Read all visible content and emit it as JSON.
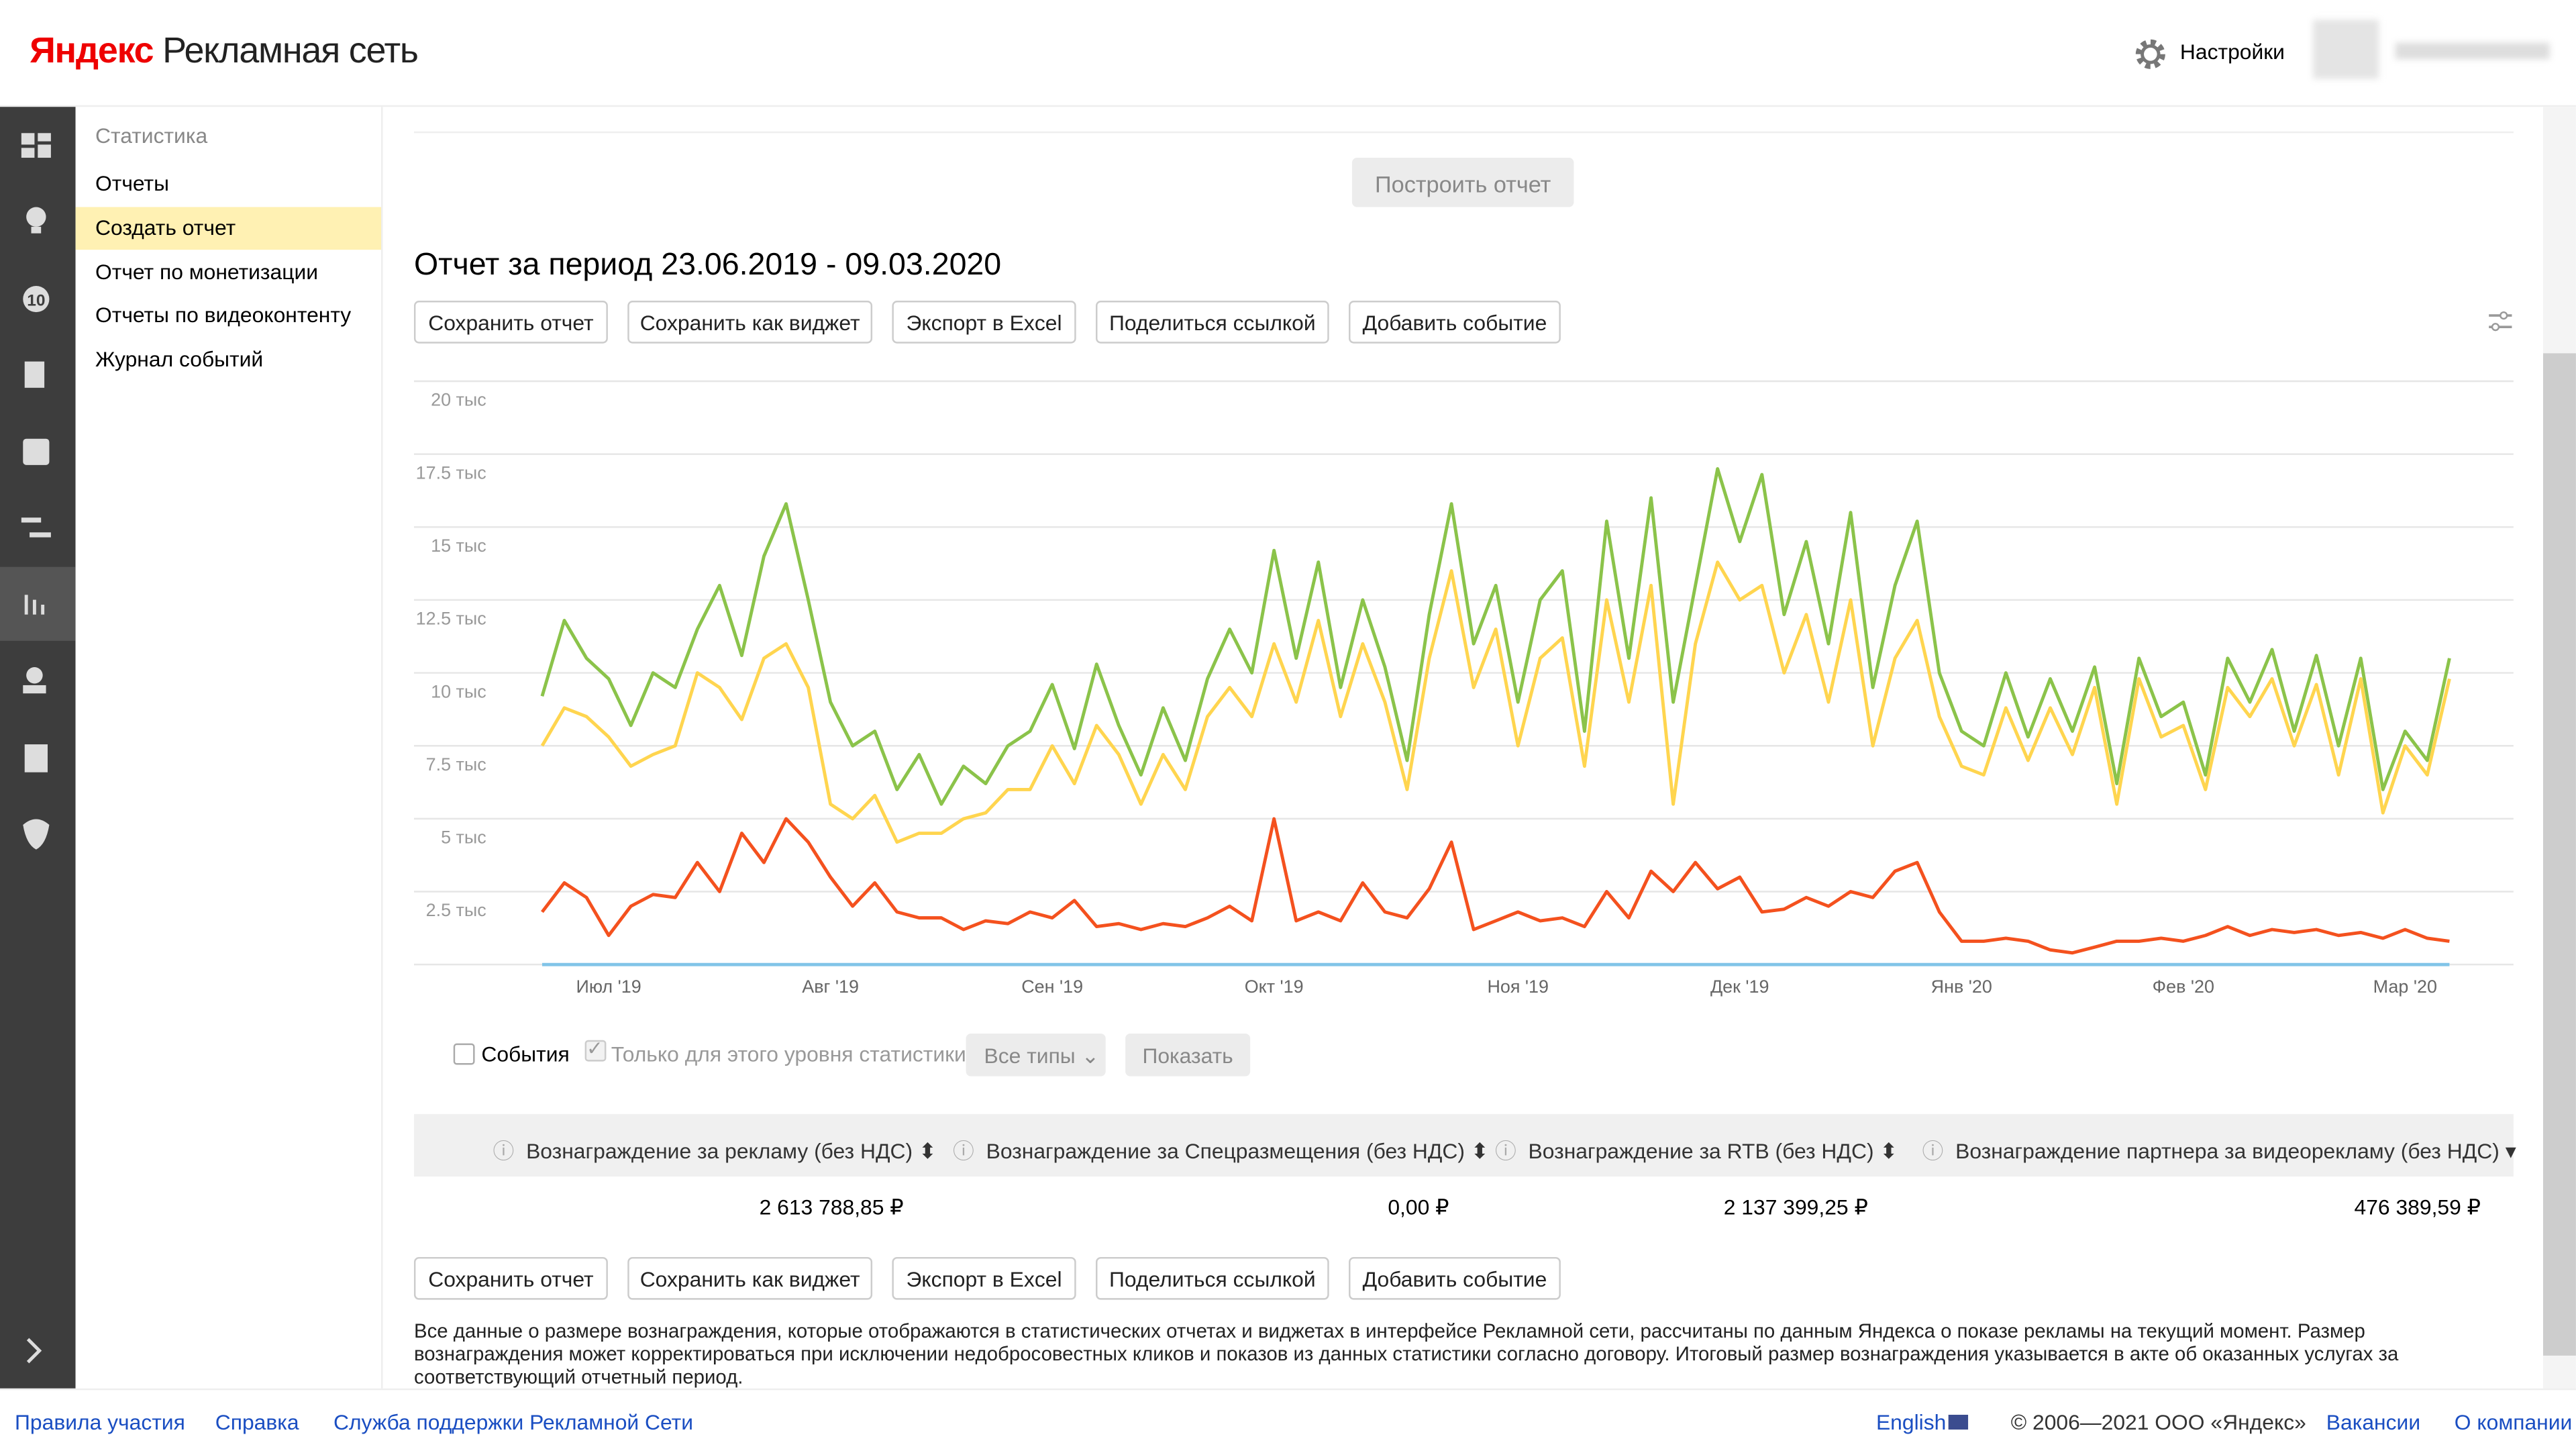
{
  "header": {
    "logo_brand": "Яндекс",
    "logo_product": "Рекламная сеть",
    "settings": "Настройки"
  },
  "sidebar": {
    "badge": "10"
  },
  "nav": {
    "section": "Статистика",
    "items": [
      "Отчеты",
      "Создать отчет",
      "Отчет по монетизации",
      "Отчеты по видеоконтенту",
      "Журнал событий"
    ]
  },
  "report": {
    "build_button": "Построить отчет",
    "title": "Отчет за период 23.06.2019 - 09.03.2020",
    "actions": [
      "Сохранить отчет",
      "Сохранить как виджет",
      "Экспорт в Excel",
      "Поделиться ссылкой",
      "Добавить событие"
    ],
    "events_checkbox": "События",
    "level_checkbox": "Только для этого уровня статистики",
    "types_select": "Все типы",
    "show_button": "Показать",
    "disclaimer": "Все данные о размере вознаграждения, которые отображаются в статистических отчетах и виджетах в интерфейсе Рекламной сети, рассчитаны по данным Яндекса о показе рекламы на текущий момент. Размер вознаграждения может корректироваться при исключении недобросовестных кликов и показов из данных статистики согласно договору. Итоговый размер вознаграждения указывается в акте об оказанных услугах за соответствующий отчетный период."
  },
  "table": {
    "headers": [
      "Вознаграждение за рекламу (без НДС)",
      "Вознаграждение за Спецразмещения (без НДС)",
      "Вознаграждение за RTB (без НДС)",
      "Вознаграждение партнера за видеорекламу (без НДС)"
    ],
    "rows": [
      [
        "2 613 788,85 ₽",
        "0,00 ₽",
        "2 137 399,25 ₽",
        "476 389,59 ₽"
      ]
    ]
  },
  "chart_data": {
    "type": "line",
    "ylim": [
      0,
      20000
    ],
    "grid": true,
    "yticks": [
      0,
      {
        "value": 2500,
        "label": "2.5 тыс"
      },
      {
        "value": 5000,
        "label": "5 тыс"
      },
      {
        "value": 7500,
        "label": "7.5 тыс"
      },
      {
        "value": 10000,
        "label": "10 тыс"
      },
      {
        "value": 12500,
        "label": "12.5 тыс"
      },
      {
        "value": 15000,
        "label": "15 тыс"
      },
      {
        "value": 17500,
        "label": "17.5 тыс"
      },
      {
        "value": 20000,
        "label": "20 тыс"
      }
    ],
    "categories": [
      null,
      null,
      null,
      "Июл '19",
      null,
      null,
      null,
      null,
      null,
      null,
      null,
      null,
      null,
      "Авг '19",
      null,
      null,
      null,
      null,
      null,
      null,
      null,
      null,
      null,
      "Сен '19",
      null,
      null,
      null,
      null,
      null,
      null,
      null,
      null,
      null,
      "Окт '19",
      null,
      null,
      null,
      null,
      null,
      null,
      null,
      null,
      null,
      null,
      "Ноя '19",
      null,
      null,
      null,
      null,
      null,
      null,
      null,
      null,
      null,
      "Дек '19",
      null,
      null,
      null,
      null,
      null,
      null,
      null,
      null,
      null,
      "Янв '20",
      null,
      null,
      null,
      null,
      null,
      null,
      null,
      null,
      null,
      "Фев '20",
      null,
      null,
      null,
      null,
      null,
      null,
      null,
      null,
      null,
      "Мар '20",
      null,
      null
    ],
    "series": [
      {
        "color": "#8bc34a",
        "values": [
          9200,
          11800,
          10500,
          9800,
          8200,
          10000,
          9500,
          11500,
          13000,
          10600,
          14000,
          15800,
          12500,
          9000,
          7500,
          8000,
          6000,
          7200,
          5500,
          6800,
          6200,
          7500,
          8000,
          9600,
          7400,
          10300,
          8200,
          6500,
          8800,
          7000,
          9800,
          11500,
          10000,
          14200,
          10500,
          13800,
          9500,
          12500,
          10200,
          7000,
          12000,
          15800,
          11000,
          13000,
          9000,
          12500,
          13500,
          8000,
          15200,
          10500,
          16000,
          9000,
          13000,
          17000,
          14500,
          16800,
          12000,
          14500,
          11000,
          15500,
          9500,
          13000,
          15200,
          10000,
          8000,
          7500,
          10000,
          7800,
          9800,
          8000,
          10200,
          6200,
          10500,
          8500,
          9000,
          6500,
          10500,
          9000,
          10800,
          8000,
          10600,
          7500,
          10500,
          6000,
          8000,
          7000,
          10500
        ]
      },
      {
        "color": "#ffd54f",
        "values": [
          7500,
          8800,
          8500,
          7800,
          6800,
          7200,
          7500,
          10000,
          9500,
          8400,
          10500,
          11000,
          9500,
          5500,
          5000,
          5800,
          4200,
          4500,
          4500,
          5000,
          5200,
          6000,
          6000,
          7500,
          6200,
          8200,
          7200,
          5500,
          7200,
          6000,
          8500,
          9500,
          8500,
          11000,
          9000,
          11800,
          8500,
          11000,
          9000,
          6000,
          10500,
          13500,
          9500,
          11500,
          7500,
          10500,
          11200,
          6800,
          12500,
          9000,
          13000,
          5500,
          11000,
          13800,
          12500,
          13000,
          10000,
          12000,
          9000,
          12500,
          7500,
          10500,
          11800,
          8500,
          6800,
          6500,
          8800,
          7000,
          8800,
          7200,
          9500,
          5500,
          9800,
          7800,
          8200,
          6000,
          9500,
          8500,
          9800,
          7500,
          9600,
          6500,
          9800,
          5200,
          7500,
          6500,
          9800
        ]
      },
      {
        "color": "#f4511e",
        "values": [
          1800,
          2800,
          2300,
          1000,
          2000,
          2400,
          2300,
          3500,
          2500,
          4500,
          3500,
          5000,
          4200,
          3000,
          2000,
          2800,
          1800,
          1600,
          1600,
          1200,
          1500,
          1400,
          1800,
          1600,
          2200,
          1300,
          1400,
          1200,
          1400,
          1300,
          1600,
          2000,
          1500,
          5000,
          1500,
          1800,
          1500,
          2800,
          1800,
          1600,
          2600,
          4200,
          1200,
          1500,
          1800,
          1500,
          1600,
          1300,
          2500,
          1600,
          3200,
          2500,
          3500,
          2600,
          3000,
          1800,
          1900,
          2300,
          2000,
          2500,
          2300,
          3200,
          3500,
          1800,
          800,
          800,
          900,
          800,
          500,
          400,
          600,
          800,
          800,
          900,
          800,
          1000,
          1300,
          1000,
          1200,
          1100,
          1200,
          1000,
          1100,
          900,
          1200,
          900,
          800
        ]
      },
      {
        "color": "#81c4e8",
        "values": [
          0,
          0,
          0,
          0,
          0,
          0,
          0,
          0,
          0,
          0,
          0,
          0,
          0,
          0,
          0,
          0,
          0,
          0,
          0,
          0,
          0,
          0,
          0,
          0,
          0,
          0,
          0,
          0,
          0,
          0,
          0,
          0,
          0,
          0,
          0,
          0,
          0,
          0,
          0,
          0,
          0,
          0,
          0,
          0,
          0,
          0,
          0,
          0,
          0,
          0,
          0,
          0,
          0,
          0,
          0,
          0,
          0,
          0,
          0,
          0,
          0,
          0,
          0,
          0,
          0,
          0,
          0,
          0,
          0,
          0,
          0,
          0,
          0,
          0,
          0,
          0,
          0,
          0,
          0,
          0,
          0,
          0,
          0,
          0,
          0,
          0,
          0
        ]
      }
    ]
  },
  "footer": {
    "left": [
      "Правила участия",
      "Справка",
      "Служба поддержки Рекламной Сети"
    ],
    "lang": "English",
    "copyright": "© 2006—2021 ООО «Яндекс»",
    "right": [
      "Вакансии",
      "О компании"
    ]
  }
}
